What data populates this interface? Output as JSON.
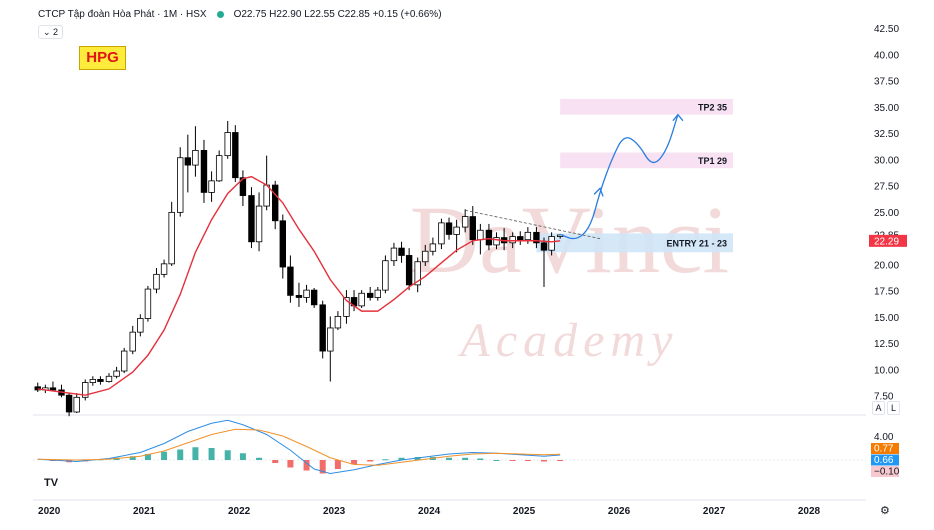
{
  "header": {
    "symbol_text": "CTCP Tập đoàn Hòa Phát · 1M · HSX",
    "ohlc_text": "O22.75 H22.90 L22.55 C22.85 +0.15 (+0.66%)"
  },
  "interval_pill": "⌄ 2",
  "ticker_badge": "HPG",
  "watermark": {
    "title": "DaVinci",
    "subtitle": "Academy"
  },
  "logo": "TV",
  "scale_buttons": {
    "auto": "A",
    "log": "L"
  },
  "settings_icon": "⚙",
  "colors": {
    "up": "#ffffff",
    "down": "#000000",
    "ma": "#e5303b",
    "macd": "#2f8ee5",
    "signal": "#f0922b",
    "hist_up": "#26a69a",
    "hist_down": "#ef5350",
    "accent_badge": "#ffeb3b"
  },
  "chart_data": [
    {
      "type": "candlestick",
      "interval": "1M",
      "x_axis_labels": [
        "2020",
        "2021",
        "2022",
        "2023",
        "2024",
        "2025",
        "2026",
        "2027",
        "2028"
      ],
      "x_range": [
        2019.83,
        2028.6
      ],
      "ylim": [
        6.0,
        43.5
      ],
      "y_ticks": [
        7.5,
        10.0,
        12.5,
        15.0,
        17.5,
        20.0,
        22.5,
        25.0,
        27.5,
        30.0,
        32.5,
        35.0,
        37.5,
        40.0,
        42.5
      ],
      "price_labels": [
        {
          "value": 22.85,
          "text": "22.85",
          "style": "plain"
        },
        {
          "value": 22.29,
          "text": "22.29",
          "style": "red"
        }
      ],
      "candles": [
        {
          "t": 2019.88,
          "o": 8.4,
          "h": 8.8,
          "l": 7.9,
          "c": 8.1
        },
        {
          "t": 2019.96,
          "o": 8.1,
          "h": 8.6,
          "l": 7.8,
          "c": 8.3
        },
        {
          "t": 2020.04,
          "o": 8.3,
          "h": 8.9,
          "l": 8.0,
          "c": 8.1
        },
        {
          "t": 2020.13,
          "o": 8.1,
          "h": 8.6,
          "l": 7.4,
          "c": 7.6
        },
        {
          "t": 2020.21,
          "o": 7.6,
          "h": 7.8,
          "l": 5.6,
          "c": 6.0
        },
        {
          "t": 2020.29,
          "o": 6.0,
          "h": 7.8,
          "l": 5.9,
          "c": 7.4
        },
        {
          "t": 2020.38,
          "o": 7.4,
          "h": 9.1,
          "l": 7.1,
          "c": 8.8
        },
        {
          "t": 2020.46,
          "o": 8.8,
          "h": 9.4,
          "l": 8.5,
          "c": 9.1
        },
        {
          "t": 2020.54,
          "o": 9.1,
          "h": 9.4,
          "l": 8.6,
          "c": 8.9
        },
        {
          "t": 2020.63,
          "o": 8.9,
          "h": 9.7,
          "l": 8.8,
          "c": 9.4
        },
        {
          "t": 2020.71,
          "o": 9.4,
          "h": 10.3,
          "l": 9.2,
          "c": 9.9
        },
        {
          "t": 2020.79,
          "o": 9.9,
          "h": 12.1,
          "l": 9.7,
          "c": 11.8
        },
        {
          "t": 2020.88,
          "o": 11.8,
          "h": 14.2,
          "l": 11.5,
          "c": 13.6
        },
        {
          "t": 2020.96,
          "o": 13.6,
          "h": 15.3,
          "l": 13.2,
          "c": 14.9
        },
        {
          "t": 2021.04,
          "o": 14.9,
          "h": 18.0,
          "l": 14.6,
          "c": 17.7
        },
        {
          "t": 2021.13,
          "o": 17.7,
          "h": 19.7,
          "l": 17.3,
          "c": 19.1
        },
        {
          "t": 2021.21,
          "o": 19.1,
          "h": 20.5,
          "l": 18.8,
          "c": 20.1
        },
        {
          "t": 2021.29,
          "o": 20.1,
          "h": 26.0,
          "l": 19.9,
          "c": 25.0
        },
        {
          "t": 2021.38,
          "o": 25.0,
          "h": 31.2,
          "l": 24.6,
          "c": 30.2
        },
        {
          "t": 2021.46,
          "o": 30.2,
          "h": 32.4,
          "l": 26.9,
          "c": 29.5
        },
        {
          "t": 2021.54,
          "o": 29.5,
          "h": 33.2,
          "l": 28.4,
          "c": 30.9
        },
        {
          "t": 2021.63,
          "o": 30.9,
          "h": 31.9,
          "l": 25.9,
          "c": 26.9
        },
        {
          "t": 2021.71,
          "o": 26.9,
          "h": 28.9,
          "l": 26.0,
          "c": 28.0
        },
        {
          "t": 2021.79,
          "o": 28.0,
          "h": 30.9,
          "l": 27.9,
          "c": 30.4
        },
        {
          "t": 2021.88,
          "o": 30.4,
          "h": 33.7,
          "l": 30.1,
          "c": 32.6
        },
        {
          "t": 2021.96,
          "o": 32.6,
          "h": 33.3,
          "l": 27.9,
          "c": 28.3
        },
        {
          "t": 2022.04,
          "o": 28.3,
          "h": 29.0,
          "l": 25.6,
          "c": 26.6
        },
        {
          "t": 2022.13,
          "o": 26.6,
          "h": 27.4,
          "l": 21.6,
          "c": 22.2
        },
        {
          "t": 2022.21,
          "o": 22.2,
          "h": 26.9,
          "l": 21.3,
          "c": 25.6
        },
        {
          "t": 2022.29,
          "o": 25.6,
          "h": 30.4,
          "l": 25.2,
          "c": 27.6
        },
        {
          "t": 2022.38,
          "o": 27.6,
          "h": 28.0,
          "l": 23.4,
          "c": 24.2
        },
        {
          "t": 2022.46,
          "o": 24.2,
          "h": 24.8,
          "l": 18.7,
          "c": 19.8
        },
        {
          "t": 2022.54,
          "o": 19.8,
          "h": 20.9,
          "l": 16.4,
          "c": 17.1
        },
        {
          "t": 2022.63,
          "o": 17.1,
          "h": 18.3,
          "l": 16.0,
          "c": 16.9
        },
        {
          "t": 2022.71,
          "o": 16.9,
          "h": 18.1,
          "l": 16.4,
          "c": 17.6
        },
        {
          "t": 2022.79,
          "o": 17.6,
          "h": 17.8,
          "l": 15.9,
          "c": 16.2
        },
        {
          "t": 2022.88,
          "o": 16.2,
          "h": 16.6,
          "l": 11.1,
          "c": 11.8
        },
        {
          "t": 2022.96,
          "o": 11.8,
          "h": 15.1,
          "l": 8.9,
          "c": 14.0
        },
        {
          "t": 2023.04,
          "o": 14.0,
          "h": 15.6,
          "l": 13.8,
          "c": 15.1
        },
        {
          "t": 2023.13,
          "o": 15.1,
          "h": 17.6,
          "l": 14.4,
          "c": 16.9
        },
        {
          "t": 2023.21,
          "o": 16.9,
          "h": 17.6,
          "l": 15.6,
          "c": 16.1
        },
        {
          "t": 2023.29,
          "o": 16.1,
          "h": 17.6,
          "l": 15.9,
          "c": 17.3
        },
        {
          "t": 2023.38,
          "o": 17.3,
          "h": 17.9,
          "l": 16.6,
          "c": 16.9
        },
        {
          "t": 2023.46,
          "o": 16.9,
          "h": 17.9,
          "l": 16.6,
          "c": 17.6
        },
        {
          "t": 2023.54,
          "o": 17.6,
          "h": 20.9,
          "l": 17.3,
          "c": 20.4
        },
        {
          "t": 2023.63,
          "o": 20.4,
          "h": 22.1,
          "l": 19.9,
          "c": 21.6
        },
        {
          "t": 2023.71,
          "o": 21.6,
          "h": 22.2,
          "l": 20.2,
          "c": 20.9
        },
        {
          "t": 2023.79,
          "o": 20.9,
          "h": 21.6,
          "l": 17.6,
          "c": 18.1
        },
        {
          "t": 2023.88,
          "o": 18.1,
          "h": 20.7,
          "l": 17.4,
          "c": 20.3
        },
        {
          "t": 2023.96,
          "o": 20.3,
          "h": 21.9,
          "l": 19.9,
          "c": 21.3
        },
        {
          "t": 2024.04,
          "o": 21.3,
          "h": 22.6,
          "l": 20.9,
          "c": 22.0
        },
        {
          "t": 2024.13,
          "o": 22.0,
          "h": 24.4,
          "l": 21.5,
          "c": 24.0
        },
        {
          "t": 2024.21,
          "o": 24.0,
          "h": 24.5,
          "l": 22.4,
          "c": 22.9
        },
        {
          "t": 2024.29,
          "o": 22.9,
          "h": 24.3,
          "l": 21.2,
          "c": 23.6
        },
        {
          "t": 2024.38,
          "o": 23.6,
          "h": 25.3,
          "l": 23.1,
          "c": 24.6
        },
        {
          "t": 2024.46,
          "o": 24.6,
          "h": 25.6,
          "l": 21.9,
          "c": 22.4
        },
        {
          "t": 2024.54,
          "o": 22.4,
          "h": 23.9,
          "l": 21.0,
          "c": 23.3
        },
        {
          "t": 2024.63,
          "o": 23.3,
          "h": 23.9,
          "l": 21.4,
          "c": 21.9
        },
        {
          "t": 2024.71,
          "o": 21.9,
          "h": 23.1,
          "l": 21.5,
          "c": 22.6
        },
        {
          "t": 2024.79,
          "o": 22.6,
          "h": 23.5,
          "l": 21.4,
          "c": 22.1
        },
        {
          "t": 2024.88,
          "o": 22.1,
          "h": 23.1,
          "l": 21.6,
          "c": 22.7
        },
        {
          "t": 2024.96,
          "o": 22.7,
          "h": 23.2,
          "l": 21.9,
          "c": 22.4
        },
        {
          "t": 2025.04,
          "o": 22.4,
          "h": 23.6,
          "l": 22.0,
          "c": 23.1
        },
        {
          "t": 2025.13,
          "o": 23.1,
          "h": 23.6,
          "l": 21.6,
          "c": 22.1
        },
        {
          "t": 2025.21,
          "o": 22.1,
          "h": 22.6,
          "l": 17.9,
          "c": 21.4
        },
        {
          "t": 2025.29,
          "o": 21.4,
          "h": 23.1,
          "l": 20.9,
          "c": 22.7
        },
        {
          "t": 2025.38,
          "o": 22.7,
          "h": 22.9,
          "l": 22.5,
          "c": 22.85
        }
      ],
      "ma_line": [
        {
          "t": 2019.88,
          "v": 8.2
        },
        {
          "t": 2020.13,
          "v": 7.9
        },
        {
          "t": 2020.38,
          "v": 7.6
        },
        {
          "t": 2020.63,
          "v": 8.2
        },
        {
          "t": 2020.88,
          "v": 9.8
        },
        {
          "t": 2021.04,
          "v": 11.4
        },
        {
          "t": 2021.21,
          "v": 13.8
        },
        {
          "t": 2021.38,
          "v": 17.2
        },
        {
          "t": 2021.54,
          "v": 21.2
        },
        {
          "t": 2021.71,
          "v": 24.3
        },
        {
          "t": 2021.88,
          "v": 26.8
        },
        {
          "t": 2022.04,
          "v": 28.2
        },
        {
          "t": 2022.13,
          "v": 28.4
        },
        {
          "t": 2022.29,
          "v": 27.6
        },
        {
          "t": 2022.46,
          "v": 25.9
        },
        {
          "t": 2022.63,
          "v": 23.4
        },
        {
          "t": 2022.79,
          "v": 21.3
        },
        {
          "t": 2022.96,
          "v": 18.6
        },
        {
          "t": 2023.13,
          "v": 16.6
        },
        {
          "t": 2023.29,
          "v": 15.6
        },
        {
          "t": 2023.46,
          "v": 15.6
        },
        {
          "t": 2023.63,
          "v": 16.7
        },
        {
          "t": 2023.79,
          "v": 17.9
        },
        {
          "t": 2023.96,
          "v": 18.9
        },
        {
          "t": 2024.13,
          "v": 20.2
        },
        {
          "t": 2024.29,
          "v": 21.4
        },
        {
          "t": 2024.46,
          "v": 22.3
        },
        {
          "t": 2024.63,
          "v": 22.5
        },
        {
          "t": 2024.79,
          "v": 22.3
        },
        {
          "t": 2024.96,
          "v": 22.3
        },
        {
          "t": 2025.13,
          "v": 22.3
        },
        {
          "t": 2025.29,
          "v": 22.2
        },
        {
          "t": 2025.38,
          "v": 22.29
        }
      ],
      "annotations": [
        {
          "type": "zone",
          "label": "TP2 35",
          "y0": 34.3,
          "y1": 35.8,
          "t0": 2025.38,
          "t1": 2027.2
        },
        {
          "type": "zone",
          "label": "TP1 29",
          "y0": 29.2,
          "y1": 30.7,
          "t0": 2025.38,
          "t1": 2027.2
        },
        {
          "type": "zone",
          "label": "ENTRY 21 - 23",
          "y0": 21.2,
          "y1": 23.0,
          "t0": 2025.13,
          "t1": 2027.2
        },
        {
          "type": "trendline",
          "points": [
            {
              "t": 2024.38,
              "v": 25.2
            },
            {
              "t": 2025.8,
              "v": 22.5
            }
          ]
        },
        {
          "type": "projection_arrow",
          "points": [
            {
              "t": 2025.38,
              "v": 22.9
            },
            {
              "t": 2025.55,
              "v": 22.3
            },
            {
              "t": 2025.7,
              "v": 23.6
            },
            {
              "t": 2025.8,
              "v": 27.0
            },
            {
              "t": 2025.92,
              "v": 30.0
            },
            {
              "t": 2026.05,
              "v": 32.4
            },
            {
              "t": 2026.2,
              "v": 31.6
            },
            {
              "t": 2026.35,
              "v": 29.3
            },
            {
              "t": 2026.5,
              "v": 30.8
            },
            {
              "t": 2026.62,
              "v": 34.3
            }
          ]
        }
      ]
    },
    {
      "type": "macd",
      "y_ticks": [
        4.0,
        -0.1
      ],
      "value_labels": [
        {
          "text": "4.00",
          "style": "plain"
        },
        {
          "text": "0.77",
          "style": "orange"
        },
        {
          "text": "0.66",
          "style": "blue"
        },
        {
          "text": "−0.10",
          "style": "pink"
        }
      ],
      "ylim": [
        -4.8,
        5.6
      ],
      "macd": [
        {
          "t": 2019.88,
          "v": 0.1
        },
        {
          "t": 2020.29,
          "v": -0.2
        },
        {
          "t": 2020.63,
          "v": 0.2
        },
        {
          "t": 2020.96,
          "v": 1.0
        },
        {
          "t": 2021.21,
          "v": 2.2
        },
        {
          "t": 2021.46,
          "v": 3.8
        },
        {
          "t": 2021.71,
          "v": 4.9
        },
        {
          "t": 2021.88,
          "v": 5.3
        },
        {
          "t": 2022.04,
          "v": 4.7
        },
        {
          "t": 2022.29,
          "v": 3.4
        },
        {
          "t": 2022.54,
          "v": 1.3
        },
        {
          "t": 2022.79,
          "v": -1.2
        },
        {
          "t": 2022.96,
          "v": -1.8
        },
        {
          "t": 2023.21,
          "v": -1.3
        },
        {
          "t": 2023.46,
          "v": -0.6
        },
        {
          "t": 2023.71,
          "v": 0.0
        },
        {
          "t": 2023.96,
          "v": 0.4
        },
        {
          "t": 2024.21,
          "v": 0.8
        },
        {
          "t": 2024.46,
          "v": 1.0
        },
        {
          "t": 2024.71,
          "v": 0.9
        },
        {
          "t": 2024.96,
          "v": 0.7
        },
        {
          "t": 2025.21,
          "v": 0.5
        },
        {
          "t": 2025.38,
          "v": 0.66
        }
      ],
      "signal": [
        {
          "t": 2019.88,
          "v": 0.1
        },
        {
          "t": 2020.29,
          "v": 0.0
        },
        {
          "t": 2020.63,
          "v": 0.1
        },
        {
          "t": 2020.96,
          "v": 0.5
        },
        {
          "t": 2021.21,
          "v": 1.2
        },
        {
          "t": 2021.46,
          "v": 2.3
        },
        {
          "t": 2021.71,
          "v": 3.4
        },
        {
          "t": 2021.96,
          "v": 4.1
        },
        {
          "t": 2022.21,
          "v": 4.0
        },
        {
          "t": 2022.46,
          "v": 3.2
        },
        {
          "t": 2022.71,
          "v": 1.8
        },
        {
          "t": 2022.96,
          "v": 0.3
        },
        {
          "t": 2023.21,
          "v": -0.6
        },
        {
          "t": 2023.46,
          "v": -0.7
        },
        {
          "t": 2023.71,
          "v": -0.3
        },
        {
          "t": 2023.96,
          "v": 0.1
        },
        {
          "t": 2024.21,
          "v": 0.5
        },
        {
          "t": 2024.46,
          "v": 0.8
        },
        {
          "t": 2024.71,
          "v": 0.9
        },
        {
          "t": 2024.96,
          "v": 0.8
        },
        {
          "t": 2025.21,
          "v": 0.7
        },
        {
          "t": 2025.38,
          "v": 0.77
        }
      ],
      "histogram": [
        {
          "t": 2020.04,
          "v": -0.1
        },
        {
          "t": 2020.21,
          "v": -0.3
        },
        {
          "t": 2020.38,
          "v": -0.2
        },
        {
          "t": 2020.54,
          "v": 0.1
        },
        {
          "t": 2020.71,
          "v": 0.3
        },
        {
          "t": 2020.88,
          "v": 0.5
        },
        {
          "t": 2021.04,
          "v": 0.8
        },
        {
          "t": 2021.21,
          "v": 1.1
        },
        {
          "t": 2021.38,
          "v": 1.4
        },
        {
          "t": 2021.54,
          "v": 1.7
        },
        {
          "t": 2021.71,
          "v": 1.6
        },
        {
          "t": 2021.88,
          "v": 1.3
        },
        {
          "t": 2022.04,
          "v": 0.9
        },
        {
          "t": 2022.21,
          "v": 0.3
        },
        {
          "t": 2022.38,
          "v": -0.4
        },
        {
          "t": 2022.54,
          "v": -1.0
        },
        {
          "t": 2022.71,
          "v": -1.4
        },
        {
          "t": 2022.88,
          "v": -1.8
        },
        {
          "t": 2023.04,
          "v": -1.2
        },
        {
          "t": 2023.21,
          "v": -0.6
        },
        {
          "t": 2023.38,
          "v": -0.2
        },
        {
          "t": 2023.54,
          "v": 0.1
        },
        {
          "t": 2023.71,
          "v": 0.3
        },
        {
          "t": 2023.88,
          "v": 0.4
        },
        {
          "t": 2024.04,
          "v": 0.4
        },
        {
          "t": 2024.21,
          "v": 0.3
        },
        {
          "t": 2024.38,
          "v": 0.3
        },
        {
          "t": 2024.54,
          "v": 0.2
        },
        {
          "t": 2024.71,
          "v": 0.0
        },
        {
          "t": 2024.88,
          "v": -0.1
        },
        {
          "t": 2025.04,
          "v": -0.1
        },
        {
          "t": 2025.21,
          "v": -0.2
        },
        {
          "t": 2025.38,
          "v": -0.1
        }
      ]
    }
  ]
}
